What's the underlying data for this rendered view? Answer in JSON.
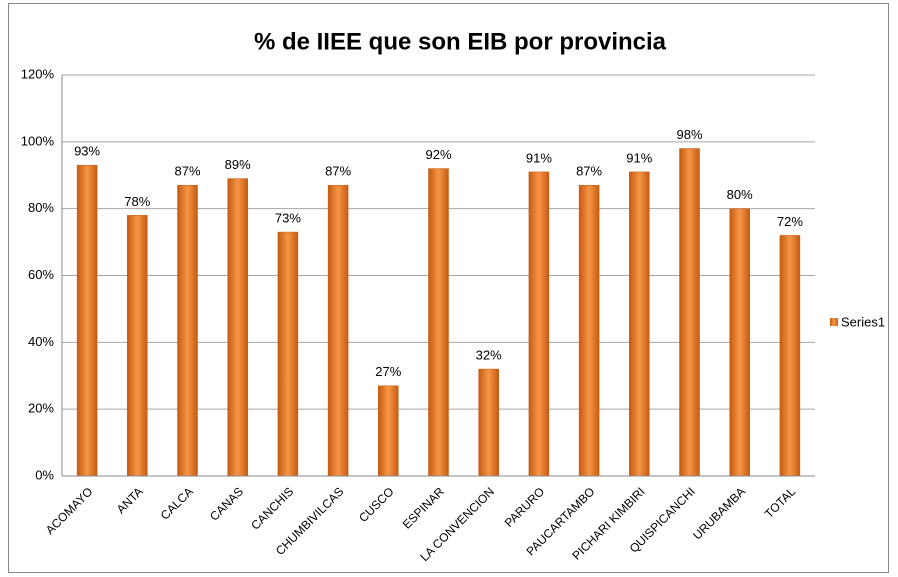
{
  "chart_data": {
    "type": "bar",
    "title": "% de IIEE que son EIB por provincia",
    "categories": [
      "ACOMAYO",
      "ANTA",
      "CALCA",
      "CANAS",
      "CANCHIS",
      "CHUMBIVILCAS",
      "CUSCO",
      "ESPINAR",
      "LA CONVENCION",
      "PARURO",
      "PAUCARTAMBO",
      "PICHARI KIMBIRI",
      "QUISPICANCHI",
      "URUBAMBA",
      "TOTAL"
    ],
    "series": [
      {
        "name": "Series1",
        "color": "#f79646",
        "values": [
          93,
          78,
          87,
          89,
          73,
          87,
          27,
          92,
          32,
          91,
          87,
          91,
          98,
          80,
          72
        ],
        "value_labels": [
          "93%",
          "78%",
          "87%",
          "89%",
          "73%",
          "87%",
          "27%",
          "92%",
          "32%",
          "91%",
          "87%",
          "91%",
          "98%",
          "80%",
          "72%"
        ]
      }
    ],
    "ylim": [
      0,
      120
    ],
    "yticks": [
      {
        "value": 0,
        "label": "0%"
      },
      {
        "value": 20,
        "label": "20%"
      },
      {
        "value": 40,
        "label": "40%"
      },
      {
        "value": 60,
        "label": "60%"
      },
      {
        "value": 80,
        "label": "80%"
      },
      {
        "value": 100,
        "label": "100%"
      },
      {
        "value": 120,
        "label": "120%"
      }
    ],
    "grid": true,
    "legend": "right"
  }
}
